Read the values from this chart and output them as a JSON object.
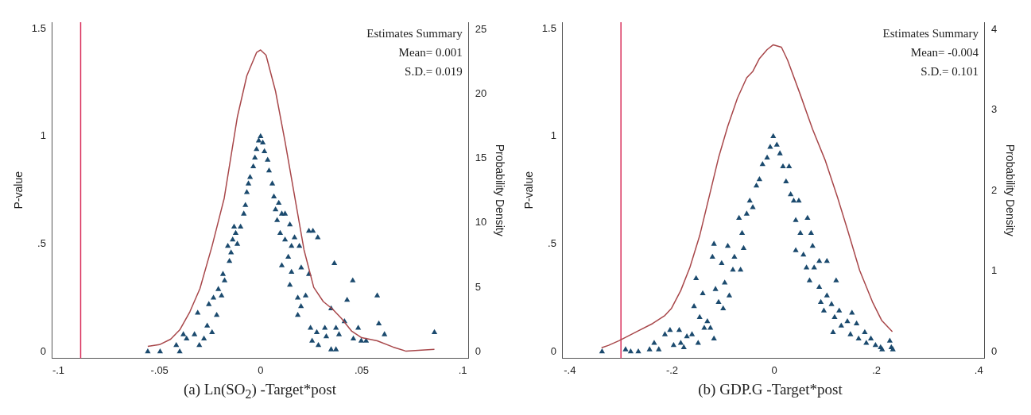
{
  "chart_data": [
    {
      "type": "scatter",
      "xlabel": "(a) Ln(SO$_{2}$) -Target*post",
      "ylabel": "P-value",
      "y2label": "Probability Density",
      "annotations": [
        "Estimates Summary",
        "Mean= 0.001",
        "S.D.= 0.019"
      ],
      "xlim": [
        -0.103,
        0.103
      ],
      "xticks": [
        {
          "value": -0.1,
          "label": "-.1"
        },
        {
          "value": -0.05,
          "label": "-.05"
        },
        0,
        {
          "value": 0.05,
          "label": ".05"
        },
        {
          "value": 0.1,
          "label": ".1"
        }
      ],
      "ylim": [
        -0.03,
        1.53
      ],
      "yticks": [
        0,
        {
          "value": 0.5,
          "label": ".5"
        },
        1,
        1.5
      ],
      "y2lim": [
        -0.49,
        25.55
      ],
      "y2ticks": [
        0,
        5,
        10,
        15,
        20,
        25
      ],
      "grid": false,
      "legend": false,
      "ref_lines": [
        {
          "axis": "x",
          "value": -0.089,
          "color": "#d9305c"
        }
      ],
      "series": [
        {
          "marker": "triangle",
          "color": "#1b4a6e",
          "x": [
            -0.0558,
            -0.0497,
            -0.0417,
            -0.04,
            -0.0382,
            -0.0366,
            -0.0327,
            -0.0311,
            -0.0303,
            -0.028,
            -0.0264,
            -0.0256,
            -0.024,
            -0.0233,
            -0.0217,
            -0.0209,
            -0.0193,
            -0.0186,
            -0.0178,
            -0.0162,
            -0.0154,
            -0.0146,
            -0.0138,
            -0.0131,
            -0.0123,
            -0.0115,
            -0.0099,
            -0.0083,
            -0.0075,
            -0.0068,
            -0.006,
            -0.0052,
            -0.0036,
            -0.0028,
            -0.002,
            -0.0009,
            0,
            0.0011,
            0.0019,
            0.0035,
            0.0042,
            0.0058,
            0.0066,
            0.0074,
            0.009,
            0.0082,
            0.0105,
            0.0121,
            0.0097,
            0.0121,
            0.0145,
            0.0153,
            0.0137,
            0.0168,
            0.0192,
            0.0105,
            0.0153,
            0.0145,
            0.0201,
            0.0239,
            0.0259,
            0.0283,
            0.0184,
            0.0223,
            0.0239,
            0.02,
            0.0184,
            0.0247,
            0.0278,
            0.0255,
            0.0286,
            0.0318,
            0.0325,
            0.0349,
            0.0365,
            0.0373,
            0.0388,
            0.0349,
            0.0373,
            0.0415,
            0.0428,
            0.0456,
            0.0459,
            0.0483,
            0.0498,
            0.0522,
            0.0577,
            0.0585,
            0.0613,
            0.086
          ],
          "values": [
            0,
            0,
            0.03,
            0,
            0.08,
            0.06,
            0.08,
            0.18,
            0.03,
            0.06,
            0.12,
            0.22,
            0.09,
            0.25,
            0.17,
            0.29,
            0.26,
            0.36,
            0.33,
            0.49,
            0.42,
            0.46,
            0.52,
            0.58,
            0.55,
            0.5,
            0.58,
            0.64,
            0.68,
            0.74,
            0.78,
            0.81,
            0.86,
            0.9,
            0.94,
            0.98,
            1,
            0.97,
            0.93,
            0.89,
            0.84,
            0.78,
            0.72,
            0.66,
            0.69,
            0.61,
            0.64,
            0.64,
            0.55,
            0.52,
            0.59,
            0.49,
            0.44,
            0.53,
            0.49,
            0.4,
            0.37,
            0.31,
            0.39,
            0.56,
            0.56,
            0.53,
            0.25,
            0.26,
            0.36,
            0.21,
            0.17,
            0.11,
            0.09,
            0.05,
            0.03,
            0.11,
            0.07,
            0.2,
            0.41,
            0.11,
            0.08,
            0.01,
            0.01,
            0.14,
            0.24,
            0.33,
            0.06,
            0.11,
            0.05,
            0.05,
            0.26,
            0.13,
            0.08,
            0.09
          ]
        },
        {
          "type": "line",
          "axis": "y2",
          "color": "#a8474a",
          "x": [
            -0.0558,
            -0.05,
            -0.0445,
            -0.04,
            -0.035,
            -0.03,
            -0.024,
            -0.018,
            -0.0115,
            -0.0068,
            -0.002,
            0,
            0.0027,
            0.0074,
            0.0121,
            0.0168,
            0.0215,
            0.0263,
            0.031,
            0.0357,
            0.04,
            0.0451,
            0.05,
            0.0577,
            0.0656,
            0.072,
            0.078,
            0.086
          ],
          "values": [
            0.42,
            0.56,
            0.98,
            1.7,
            3.1,
            4.9,
            8.2,
            11.9,
            18.2,
            21.4,
            23.2,
            23.4,
            23.0,
            20.2,
            16.3,
            12.1,
            7.9,
            5.0,
            3.9,
            3.3,
            2.6,
            1.6,
            1.1,
            0.86,
            0.37,
            0.05,
            0.12,
            0.2
          ]
        }
      ]
    },
    {
      "type": "scatter",
      "xlabel": "(b) GDP.G -Target*post",
      "ylabel": "P-value",
      "y2label": "Probability Density",
      "annotations": [
        "Estimates Summary",
        "Mean= -0.004",
        "S.D.= 0.101"
      ],
      "xlim": [
        -0.414,
        0.412
      ],
      "xticks": [
        {
          "value": -0.4,
          "label": "-.4"
        },
        {
          "value": -0.2,
          "label": "-.2"
        },
        0,
        {
          "value": 0.2,
          "label": ".2"
        },
        {
          "value": 0.4,
          "label": ".4"
        }
      ],
      "ylim": [
        -0.03,
        1.53
      ],
      "yticks": [
        0,
        {
          "value": 0.5,
          "label": ".5"
        },
        1,
        1.5
      ],
      "y2lim": [
        -0.08,
        4.09
      ],
      "y2ticks": [
        0,
        1,
        2,
        3,
        4
      ],
      "grid": false,
      "legend": false,
      "ref_lines": [
        {
          "axis": "x",
          "value": -0.3,
          "color": "#d9305c"
        }
      ],
      "series": [
        {
          "marker": "triangle",
          "color": "#1b4a6e",
          "x": [
            -0.337,
            -0.291,
            -0.281,
            -0.266,
            -0.244,
            -0.235,
            -0.226,
            -0.214,
            -0.204,
            -0.197,
            -0.186,
            -0.183,
            -0.177,
            -0.171,
            -0.161,
            -0.157,
            -0.153,
            -0.149,
            -0.146,
            -0.14,
            -0.137,
            -0.131,
            -0.125,
            -0.121,
            -0.118,
            -0.118,
            -0.115,
            -0.109,
            -0.103,
            -0.1,
            -0.097,
            -0.091,
            -0.088,
            -0.081,
            -0.078,
            -0.069,
            -0.066,
            -0.063,
            -0.06,
            -0.054,
            -0.048,
            -0.042,
            -0.035,
            -0.029,
            -0.023,
            -0.014,
            -0.008,
            -0.002,
            0.005,
            0.011,
            0.017,
            0.029,
            0.023,
            0.032,
            0.038,
            0.048,
            0.042,
            0.051,
            0.065,
            0.042,
            0.057,
            0.072,
            0.075,
            0.063,
            0.078,
            0.088,
            0.103,
            0.069,
            0.088,
            0.103,
            0.121,
            0.091,
            0.097,
            0.112,
            0.118,
            0.127,
            0.115,
            0.131,
            0.143,
            0.152,
            0.149,
            0.161,
            0.165,
            0.177,
            0.18,
            0.189,
            0.198,
            0.208,
            0.211,
            0.226,
            0.229,
            0.232
          ],
          "values": [
            0,
            0.01,
            0,
            0,
            0.01,
            0.04,
            0.01,
            0.08,
            0.1,
            0.03,
            0.1,
            0.04,
            0.02,
            0.07,
            0.08,
            0.21,
            0.34,
            0.04,
            0.16,
            0.27,
            0.11,
            0.14,
            0.11,
            0.44,
            0.5,
            0.06,
            0.29,
            0.23,
            0.41,
            0.2,
            0.32,
            0.49,
            0.26,
            0.38,
            0.44,
            0.62,
            0.38,
            0.55,
            0.48,
            0.64,
            0.7,
            0.67,
            0.77,
            0.8,
            0.87,
            0.9,
            0.95,
            1,
            0.96,
            0.92,
            0.86,
            0.86,
            0.79,
            0.73,
            0.7,
            0.7,
            0.61,
            0.55,
            0.62,
            0.47,
            0.45,
            0.55,
            0.49,
            0.39,
            0.39,
            0.42,
            0.42,
            0.33,
            0.3,
            0.26,
            0.33,
            0.23,
            0.19,
            0.22,
            0.16,
            0.19,
            0.09,
            0.12,
            0.14,
            0.18,
            0.08,
            0.13,
            0.06,
            0.09,
            0.04,
            0.06,
            0.03,
            0.02,
            0.01,
            0.05,
            0.02,
            0.01
          ]
        },
        {
          "type": "line",
          "axis": "y2",
          "color": "#a8474a",
          "x": [
            -0.338,
            -0.324,
            -0.303,
            -0.269,
            -0.238,
            -0.214,
            -0.201,
            -0.183,
            -0.165,
            -0.146,
            -0.128,
            -0.109,
            -0.091,
            -0.072,
            -0.054,
            -0.042,
            -0.029,
            -0.014,
            -0.002,
            0.014,
            0.026,
            0.051,
            0.075,
            0.1,
            0.124,
            0.143,
            0.167,
            0.192,
            0.21,
            0.231
          ],
          "values": [
            0.05,
            0.08,
            0.14,
            0.25,
            0.35,
            0.45,
            0.54,
            0.76,
            1.05,
            1.44,
            1.91,
            2.41,
            2.8,
            3.15,
            3.4,
            3.48,
            3.64,
            3.75,
            3.81,
            3.78,
            3.62,
            3.19,
            2.76,
            2.37,
            1.91,
            1.52,
            1.01,
            0.62,
            0.39,
            0.25
          ]
        }
      ]
    }
  ]
}
